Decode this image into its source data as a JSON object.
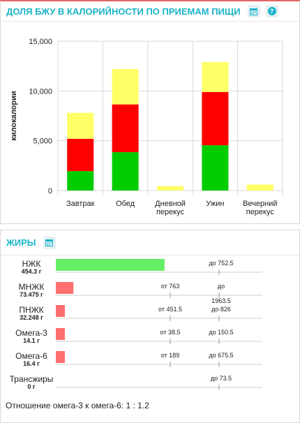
{
  "panel1": {
    "title": "ДОЛЯ БЖУ В КАЛОРИЙНОСТИ ПО ПРИЕМАМ ПИЩИ"
  },
  "panel2": {
    "title": "ЖИРЫ"
  },
  "chart_data": {
    "type": "bar",
    "stacked": true,
    "title": "",
    "xlabel": "",
    "ylabel": "килокалории",
    "ylim": [
      0,
      15000
    ],
    "yticks": [
      0,
      5000,
      10000,
      15000
    ],
    "ytick_labels": [
      "0",
      "5,000",
      "10,000",
      "15,000"
    ],
    "grid": true,
    "categories": [
      [
        "Завтрак"
      ],
      [
        "Обед"
      ],
      [
        "Дневной",
        "перекус"
      ],
      [
        "Ужин"
      ],
      [
        "Вечерний",
        "перекус"
      ]
    ],
    "series": [
      {
        "values": [
          1950,
          3850,
          0,
          4550,
          0
        ],
        "color": "#00cc00"
      },
      {
        "values": [
          3250,
          4800,
          0,
          5350,
          0
        ],
        "color": "#ff0000"
      },
      {
        "values": [
          2600,
          3550,
          450,
          3000,
          600
        ],
        "color": "#ffff66"
      }
    ]
  },
  "fats": {
    "rows": [
      {
        "name": "НЖК",
        "value": "454.3 г",
        "amount": 454.3,
        "min": "",
        "max": "до 752.5",
        "max_wrap": "",
        "color": "#66ee66"
      },
      {
        "name": "МНЖК",
        "value": "73.475 г",
        "amount": 73.475,
        "min": "от 763",
        "max": "до",
        "max_wrap": "1963.5",
        "color": "#ff6f6f"
      },
      {
        "name": "ПНЖК",
        "value": "32.248 г",
        "amount": 32.248,
        "min": "от 451.5",
        "max": "до 826",
        "max_wrap": "",
        "color": "#ff6f6f"
      },
      {
        "name": "Омега-3",
        "value": "14.1 г",
        "amount": 14.1,
        "min": "от 38.5",
        "max": "до 150.5",
        "max_wrap": "",
        "color": "#ff6f6f"
      },
      {
        "name": "Омега-6",
        "value": "16.4 г",
        "amount": 16.4,
        "min": "от 189",
        "max": "до 675.5",
        "max_wrap": "",
        "color": "#ff6f6f"
      },
      {
        "name": "Трансжиры",
        "value": "0 г",
        "amount": 0,
        "min": "",
        "max": "до 73.5",
        "max_wrap": "",
        "color": "#ff6f6f"
      }
    ],
    "ratio_text": "Отношение омега-3 к омега-6: 1 : 1.2"
  }
}
